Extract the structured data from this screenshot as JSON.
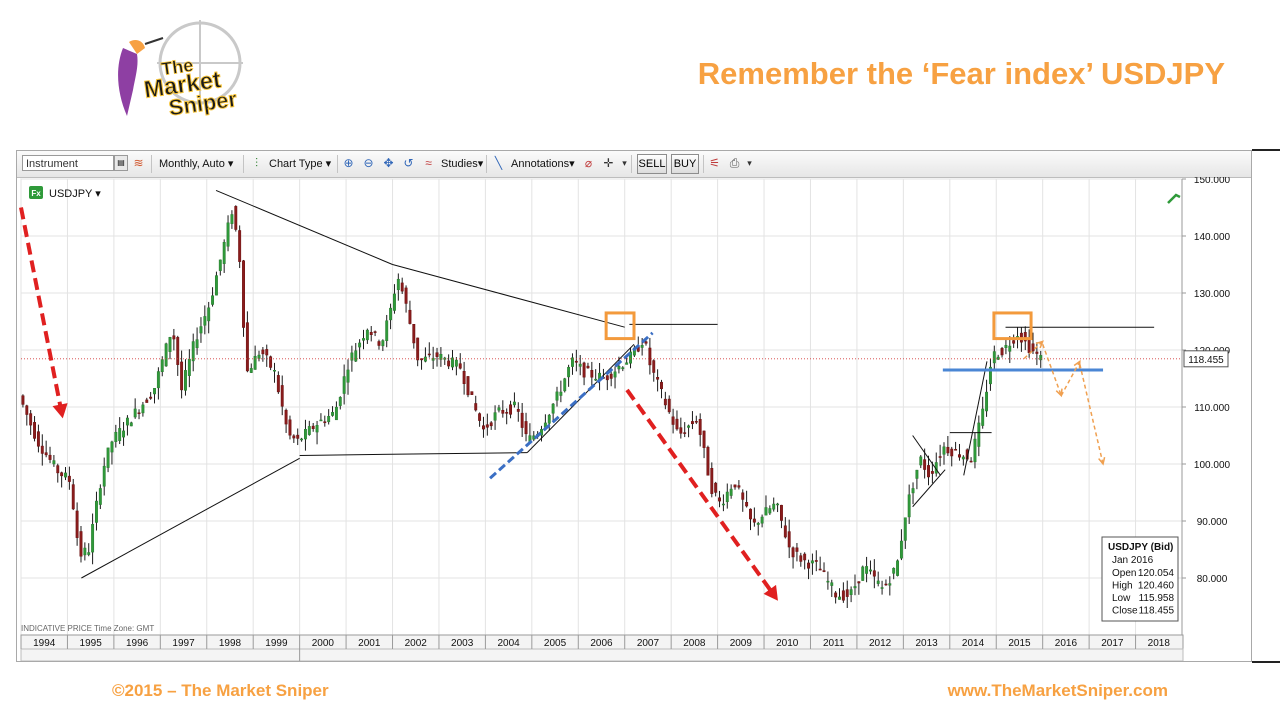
{
  "slide": {
    "title": "Remember the ‘Fear index’ USDJPY",
    "footer_left": "©2015 – The Market Sniper",
    "footer_right": "www.TheMarketSniper.com",
    "logo_text_1": "The",
    "logo_text_2": "Market",
    "logo_text_3": "Sniper"
  },
  "toolbar": {
    "instrument_placeholder": "Instrument",
    "period": "Monthly, Auto",
    "chart_type": "Chart Type",
    "studies": "Studies",
    "annotations": "Annotations",
    "sell": "SELL",
    "buy": "BUY"
  },
  "chart_data": {
    "type": "candlestick",
    "symbol_label": "USDJPY",
    "footer_note": "INDICATIVE PRICE   Time Zone: GMT",
    "last_price_label": "118.455",
    "y_axis": {
      "min": 70,
      "max": 150,
      "ticks": [
        "150.000",
        "140.000",
        "130.000",
        "120.000",
        "110.000",
        "100.000",
        "90.000",
        "80.000"
      ]
    },
    "x_axis": {
      "range": [
        1994,
        2019
      ],
      "ticks": [
        "1994",
        "1995",
        "1996",
        "1997",
        "1998",
        "1999",
        "2000",
        "2001",
        "2002",
        "2003",
        "2004",
        "2005",
        "2006",
        "2007",
        "2008",
        "2009",
        "2010",
        "2011",
        "2012",
        "2013",
        "2014",
        "2015",
        "2016",
        "2017",
        "2018"
      ]
    },
    "price_path": [
      [
        1994.0,
        112
      ],
      [
        1994.4,
        104
      ],
      [
        1994.8,
        99
      ],
      [
        1995.1,
        97
      ],
      [
        1995.3,
        84
      ],
      [
        1995.5,
        85
      ],
      [
        1995.8,
        99
      ],
      [
        1996.0,
        104
      ],
      [
        1996.5,
        109
      ],
      [
        1996.9,
        113
      ],
      [
        1997.3,
        124
      ],
      [
        1997.5,
        113
      ],
      [
        1997.8,
        122
      ],
      [
        1998.1,
        128
      ],
      [
        1998.4,
        138
      ],
      [
        1998.6,
        145
      ],
      [
        1998.75,
        136
      ],
      [
        1998.9,
        116
      ],
      [
        1999.2,
        120
      ],
      [
        1999.5,
        116
      ],
      [
        1999.8,
        105
      ],
      [
        2000.0,
        104
      ],
      [
        2000.4,
        107
      ],
      [
        2000.8,
        109
      ],
      [
        2001.1,
        118
      ],
      [
        2001.5,
        124
      ],
      [
        2001.8,
        121
      ],
      [
        2002.0,
        127
      ],
      [
        2002.15,
        133
      ],
      [
        2002.3,
        129
      ],
      [
        2002.6,
        118
      ],
      [
        2003.0,
        119
      ],
      [
        2003.5,
        117
      ],
      [
        2003.8,
        110
      ],
      [
        2004.0,
        106
      ],
      [
        2004.3,
        109
      ],
      [
        2004.7,
        110
      ],
      [
        2004.95,
        104
      ],
      [
        2005.2,
        106
      ],
      [
        2005.6,
        112
      ],
      [
        2005.9,
        118
      ],
      [
        2006.2,
        116
      ],
      [
        2006.6,
        115
      ],
      [
        2006.9,
        117
      ],
      [
        2007.2,
        119
      ],
      [
        2007.45,
        122
      ],
      [
        2007.6,
        117
      ],
      [
        2007.9,
        111
      ],
      [
        2008.2,
        105
      ],
      [
        2008.6,
        108
      ],
      [
        2008.9,
        96
      ],
      [
        2009.1,
        93
      ],
      [
        2009.4,
        97
      ],
      [
        2009.8,
        89
      ],
      [
        2010.0,
        91
      ],
      [
        2010.3,
        93
      ],
      [
        2010.6,
        85
      ],
      [
        2010.9,
        83
      ],
      [
        2011.2,
        82
      ],
      [
        2011.6,
        77
      ],
      [
        2011.9,
        77
      ],
      [
        2012.2,
        82
      ],
      [
        2012.6,
        78
      ],
      [
        2012.9,
        82
      ],
      [
        2013.1,
        92
      ],
      [
        2013.4,
        101
      ],
      [
        2013.6,
        98
      ],
      [
        2013.9,
        103
      ],
      [
        2014.2,
        102
      ],
      [
        2014.5,
        101
      ],
      [
        2014.75,
        109
      ],
      [
        2014.95,
        119
      ],
      [
        2015.2,
        120
      ],
      [
        2015.5,
        123
      ],
      [
        2015.8,
        120
      ],
      [
        2016.0,
        118.455
      ]
    ],
    "last_bar": {
      "title": "USDJPY (Bid)",
      "period": "Jan 2016",
      "open_label": "Open",
      "open": "120.054",
      "high_label": "High",
      "high": "120.460",
      "low_label": "Low",
      "low": "115.958",
      "close_label": "Close",
      "close": "118.455"
    },
    "annotations": {
      "trendlines": [
        [
          [
            1995.3,
            80
          ],
          [
            2000.0,
            101
          ]
        ],
        [
          [
            1998.2,
            148
          ],
          [
            2002.0,
            135
          ]
        ],
        [
          [
            2002.0,
            135
          ],
          [
            2007.0,
            124
          ]
        ],
        [
          [
            2000.0,
            101.5
          ],
          [
            2004.9,
            102
          ]
        ],
        [
          [
            2007.1,
            124.5
          ],
          [
            2009.0,
            124.5
          ]
        ],
        [
          [
            2015.2,
            124
          ],
          [
            2018.4,
            124
          ]
        ],
        [
          [
            2004.9,
            102
          ],
          [
            2007.2,
            121
          ]
        ],
        [
          [
            2014.3,
            98
          ],
          [
            2014.8,
            118
          ]
        ],
        [
          [
            2014.0,
            105.5
          ],
          [
            2014.9,
            105.5
          ]
        ],
        [
          [
            2013.2,
            105
          ],
          [
            2013.8,
            98
          ]
        ],
        [
          [
            2013.2,
            92.5
          ],
          [
            2013.9,
            99
          ]
        ]
      ],
      "blue_dashed": [
        [
          2004.1,
          97.5
        ],
        [
          2007.6,
          123
        ]
      ],
      "blue_support": [
        [
          2013.85,
          116.5
        ],
        [
          2017.3,
          116.5
        ]
      ],
      "red_arrows": [
        [
          [
            1994.0,
            145
          ],
          [
            1994.9,
            108
          ]
        ],
        [
          [
            2007.05,
            113
          ],
          [
            2010.3,
            76
          ]
        ]
      ],
      "orange_boxes": [
        [
          [
            2006.6,
            126.5
          ],
          [
            2007.2,
            122
          ]
        ],
        [
          [
            2014.95,
            126.5
          ],
          [
            2015.75,
            122
          ]
        ]
      ],
      "orange_forecast": [
        [
          [
            2015.6,
            118.5
          ],
          [
            2016.0,
            121.5
          ]
        ],
        [
          [
            2016.0,
            121
          ],
          [
            2016.4,
            112
          ]
        ],
        [
          [
            2016.4,
            112
          ],
          [
            2016.8,
            118
          ]
        ],
        [
          [
            2016.8,
            117.5
          ],
          [
            2017.3,
            100
          ]
        ]
      ],
      "marker_line": 118.455
    }
  }
}
